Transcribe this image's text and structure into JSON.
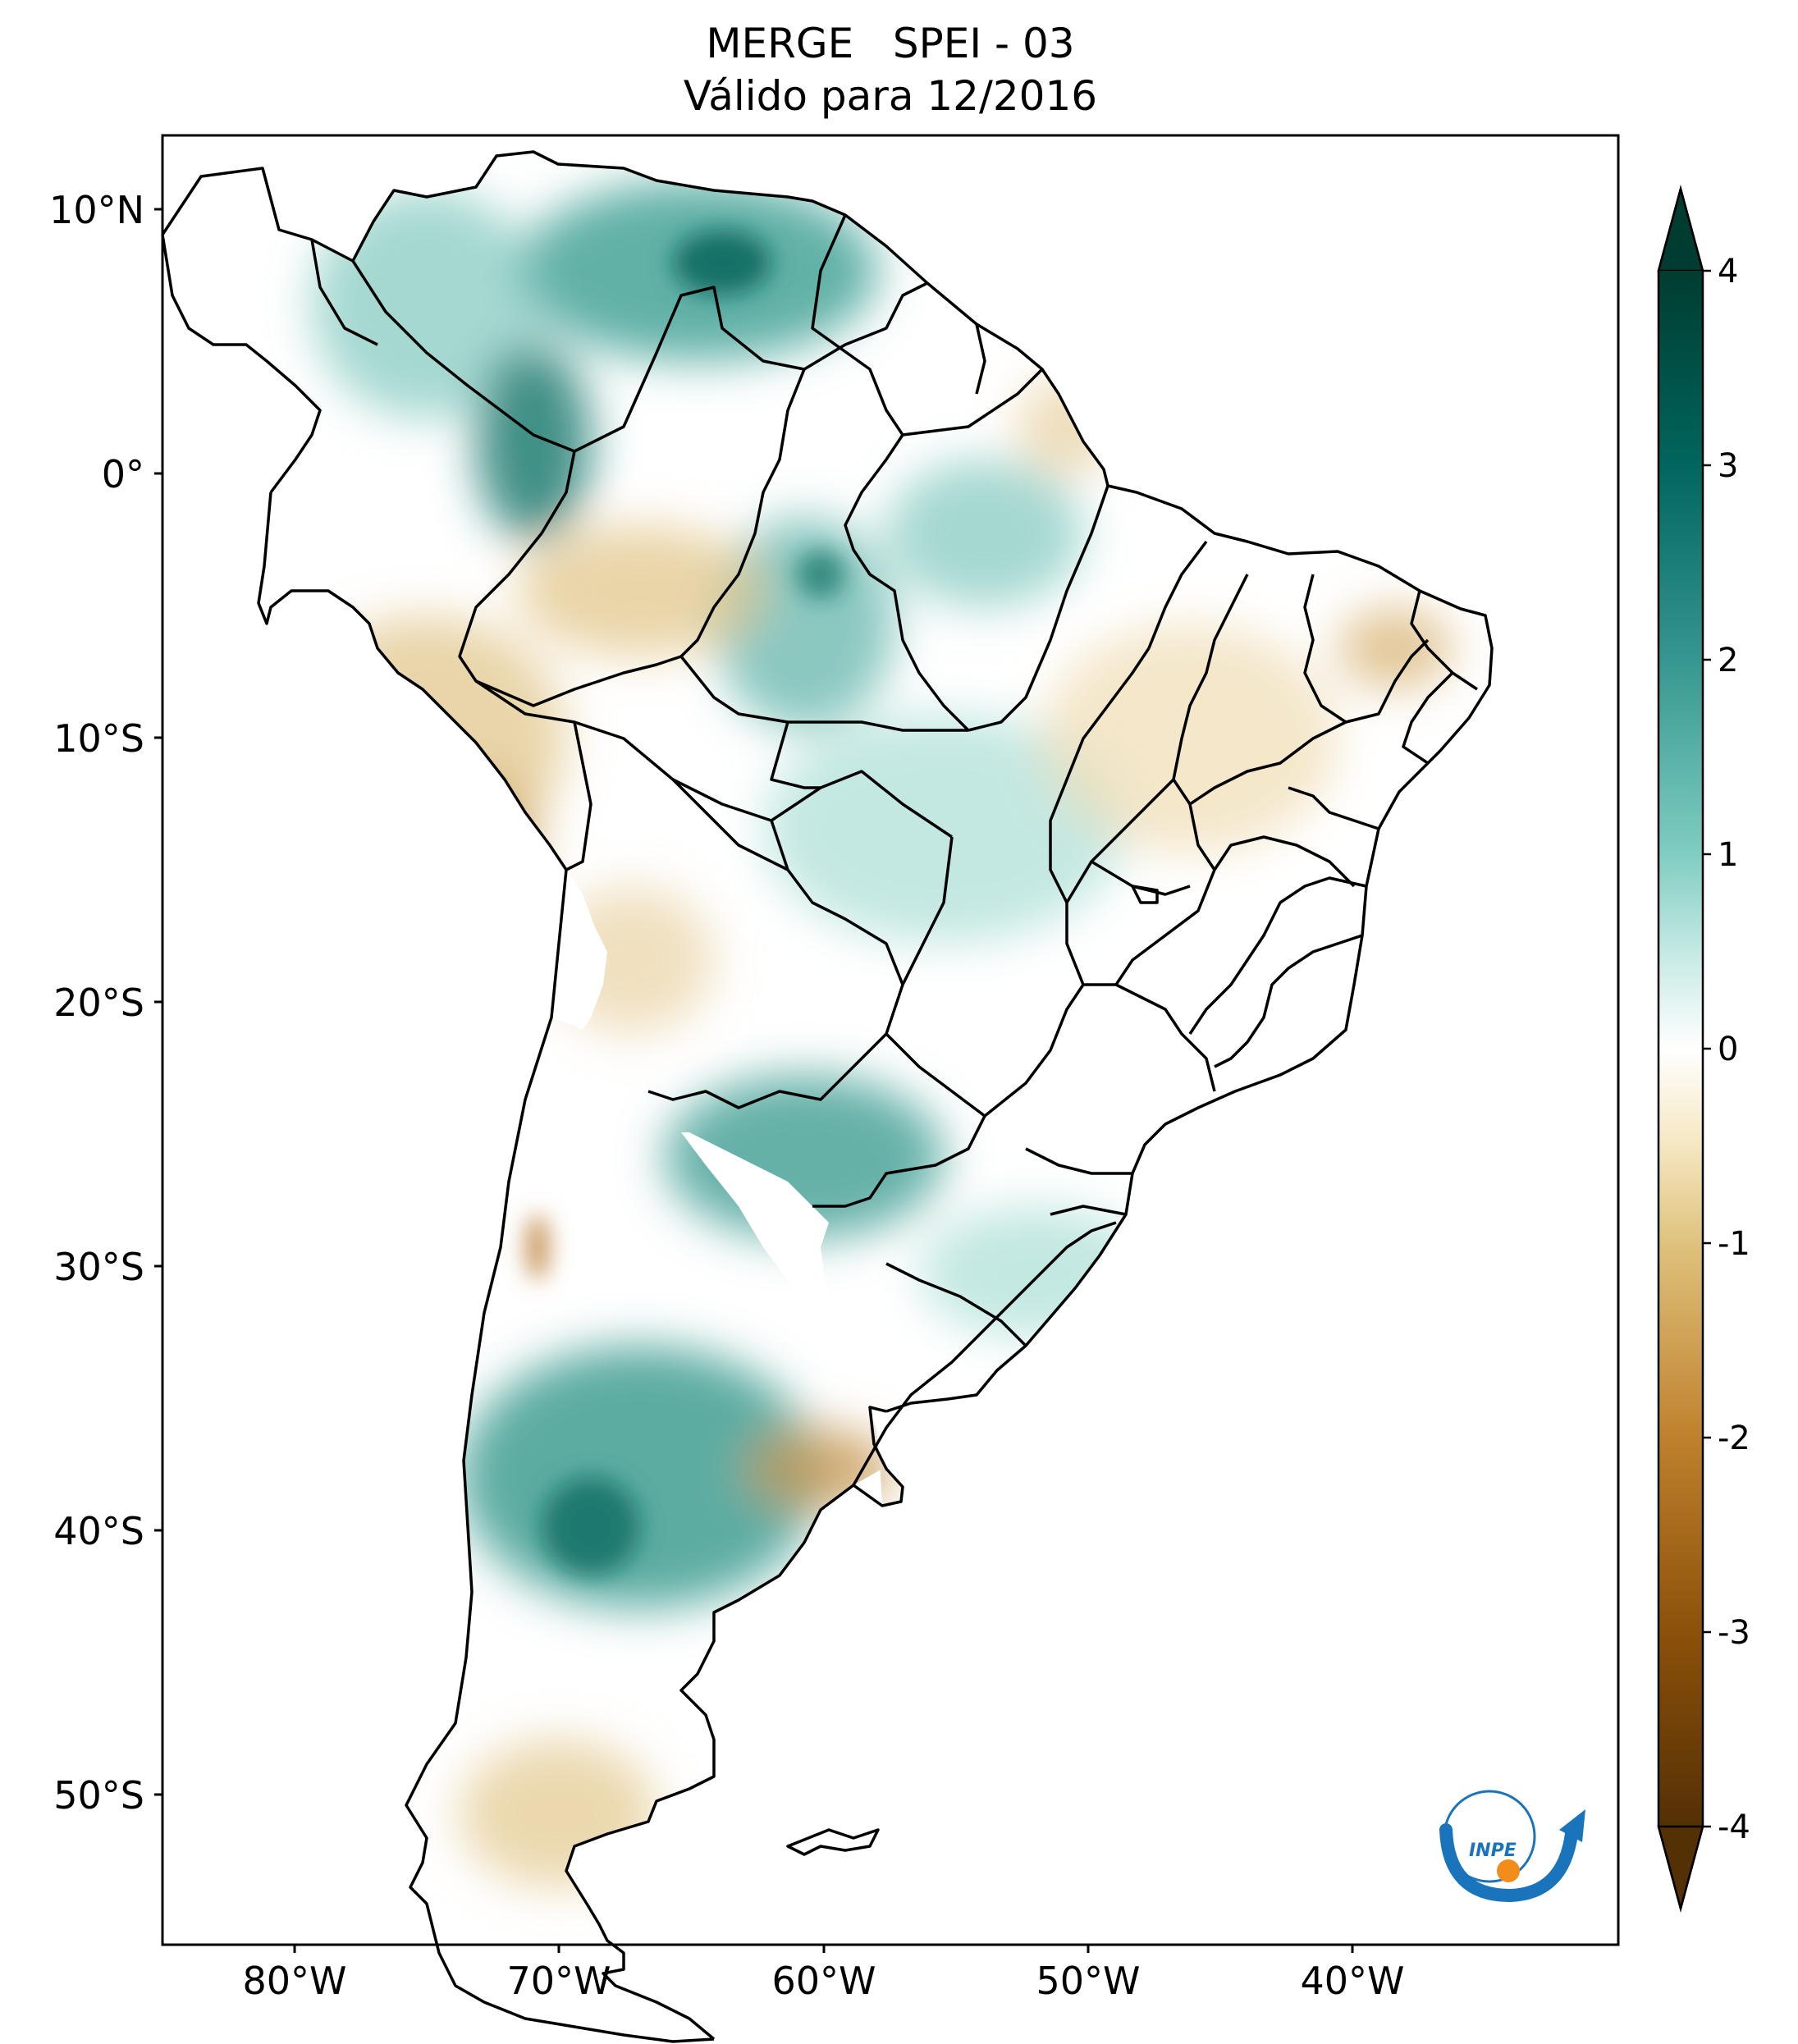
{
  "title": {
    "line1": "MERGE   SPEI - 03",
    "line2": "Válido para 12/2016"
  },
  "axes": {
    "lat_ticks": [
      "10°N",
      "0°",
      "10°S",
      "20°S",
      "30°S",
      "40°S",
      "50°S"
    ],
    "lon_ticks": [
      "80°W",
      "70°W",
      "60°W",
      "50°W",
      "40°W"
    ],
    "lat_range": [
      -56,
      12.5
    ],
    "lon_range": [
      -85,
      -30
    ]
  },
  "colorbar": {
    "ticks": [
      "4",
      "3",
      "2",
      "1",
      "0",
      "-1",
      "-2",
      "-3",
      "-4"
    ],
    "range": [
      -4,
      4
    ],
    "extend": "both",
    "colors": {
      "wet": "#01665e",
      "neutral": "#ffffff",
      "dry": "#8c510a"
    }
  },
  "logo": {
    "text": "INPE",
    "colors": {
      "blue": "#1a74bb",
      "orange": "#f28c1a"
    }
  },
  "colors": {
    "border": "#000000",
    "frame": "#000000"
  }
}
